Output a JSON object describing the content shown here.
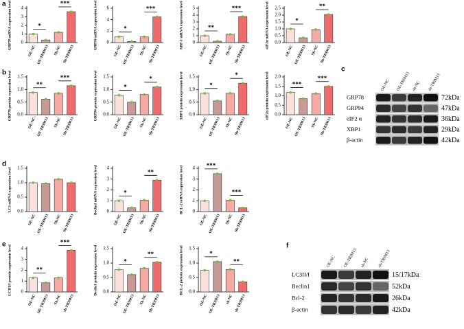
{
  "chart_data": [
    {
      "type": "bar",
      "panel": "a",
      "ylabel": "GRP78 mRNA expression level",
      "categories": [
        "OE-NC",
        "OE-TRIM13",
        "Sh-NC",
        "Sh-TRIM13"
      ],
      "values": [
        1.0,
        0.3,
        1.2,
        3.6
      ],
      "colors": [
        "#fbe0dc",
        "#c89a96",
        "#f5aaa4",
        "#ee6b6b"
      ],
      "ylim": [
        0,
        4
      ],
      "yticks": [
        0,
        1,
        2,
        3,
        4
      ],
      "annotations": [
        {
          "text": "*"
        },
        {
          "text": "***"
        }
      ]
    },
    {
      "type": "bar",
      "ylabel": "GRP94 mRNA expression level",
      "categories": [
        "OE-NC",
        "OE-TRIM13",
        "Sh-NC",
        "Sh-TRIM13"
      ],
      "values": [
        1.0,
        0.2,
        1.0,
        4.5
      ],
      "colors": [
        "#fbe0dc",
        "#c89a96",
        "#f5aaa4",
        "#ee6b6b"
      ],
      "ylim": [
        0,
        6
      ],
      "yticks": [
        0,
        2,
        4,
        6
      ],
      "annotations": [
        {
          "text": "*"
        },
        {
          "text": "***"
        }
      ]
    },
    {
      "type": "bar",
      "ylabel": "XBP-1 mRNA expression level",
      "categories": [
        "OE-NC",
        "OE-TRIM13",
        "Sh-NC",
        "Sh-TRIM13"
      ],
      "values": [
        1.0,
        0.2,
        1.2,
        3.8
      ],
      "colors": [
        "#fbe0dc",
        "#c89a96",
        "#f5aaa4",
        "#ee6b6b"
      ],
      "ylim": [
        0,
        5
      ],
      "yticks": [
        0,
        1,
        2,
        3,
        4,
        5
      ],
      "annotations": [
        {
          "text": "**"
        },
        {
          "text": "***"
        }
      ]
    },
    {
      "type": "bar",
      "ylabel": "eIF2α mRNA expression level",
      "categories": [
        "OE-NC",
        "OE-TRIM13",
        "Sh-NC",
        "Sh-TRIM13"
      ],
      "values": [
        1.0,
        0.35,
        0.95,
        2.05
      ],
      "colors": [
        "#fbe0dc",
        "#c89a96",
        "#f5aaa4",
        "#ee6b6b"
      ],
      "ylim": [
        0,
        2.5
      ],
      "yticks": [
        {
          "value": 0,
          "label": "0.0"
        },
        0.5,
        {
          "value": 1,
          "label": "1.0"
        },
        1.5,
        {
          "value": 2,
          "label": "2.0"
        },
        2.5
      ],
      "annotations": [
        {
          "text": "*"
        },
        {
          "text": "**"
        }
      ]
    },
    {
      "type": "bar",
      "panel": "b",
      "ylabel": "GRP78 protein expression level",
      "categories": [
        "OE-NC",
        "OE-TRIM13",
        "Sh-NC",
        "Sh-TRIM13"
      ],
      "values": [
        0.88,
        0.62,
        0.85,
        1.15
      ],
      "colors": [
        "#fbe0dc",
        "#c89a96",
        "#f5aaa4",
        "#ee6b6b"
      ],
      "ylim": [
        0,
        1.5
      ],
      "yticks": [
        {
          "value": 0,
          "label": "0.0"
        },
        0.5,
        {
          "value": 1,
          "label": "1.0"
        },
        1.5
      ],
      "annotations": [
        {
          "text": "**"
        },
        {
          "text": "***"
        }
      ]
    },
    {
      "type": "bar",
      "ylabel": "GRP94 protein expression level",
      "categories": [
        "OE-NC",
        "OE-TRIM13",
        "Sh-NC",
        "Sh-TRIM13"
      ],
      "values": [
        0.78,
        0.5,
        0.8,
        1.1
      ],
      "colors": [
        "#fbe0dc",
        "#c89a96",
        "#f5aaa4",
        "#ee6b6b"
      ],
      "ylim": [
        0,
        1.5
      ],
      "yticks": [
        {
          "value": 0,
          "label": "0.0"
        },
        0.5,
        {
          "value": 1,
          "label": "1.0"
        },
        1.5
      ],
      "annotations": [
        {
          "text": "*"
        },
        {
          "text": "*"
        }
      ]
    },
    {
      "type": "bar",
      "ylabel": "XBP1 protein expression level",
      "categories": [
        "OE-NC",
        "OE-TRIM13",
        "Sh-NC",
        "Sh-TRIM13"
      ],
      "values": [
        0.85,
        0.55,
        0.85,
        1.25
      ],
      "colors": [
        "#fbe0dc",
        "#c89a96",
        "#f5aaa4",
        "#ee6b6b"
      ],
      "ylim": [
        0,
        1.5
      ],
      "yticks": [
        {
          "value": 0,
          "label": "0.0"
        },
        0.5,
        {
          "value": 1,
          "label": "1.0"
        },
        1.5
      ],
      "annotations": [
        {
          "text": "*"
        },
        {
          "text": "*"
        }
      ]
    },
    {
      "type": "bar",
      "ylabel": "eIF2α protein expression level",
      "categories": [
        "OE-NC",
        "OE-TRIM13",
        "Sh-NC",
        "Sh-TRIM13"
      ],
      "values": [
        1.18,
        0.85,
        1.12,
        1.5
      ],
      "colors": [
        "#fbe0dc",
        "#c89a96",
        "#f5aaa4",
        "#ee6b6b"
      ],
      "ylim": [
        0,
        2
      ],
      "yticks": [
        {
          "value": 0,
          "label": "0.0"
        },
        0.5,
        {
          "value": 1,
          "label": "1.0"
        },
        1.5,
        {
          "value": 2,
          "label": "2.0"
        }
      ],
      "annotations": [
        {
          "text": "***"
        },
        {
          "text": "***"
        }
      ]
    },
    {
      "type": "bar",
      "panel": "d",
      "ylabel": "LC3 mRNA expression level",
      "categories": [
        "OE-NC",
        "OE-TRIM13",
        "Sh-NC",
        "Sh-TRIM13"
      ],
      "values": [
        1.0,
        0.97,
        1.12,
        1.0
      ],
      "colors": [
        "#fbe0dc",
        "#c89a96",
        "#f5aaa4",
        "#ee6b6b"
      ],
      "ylim": [
        0,
        1.5
      ],
      "yticks": [
        {
          "value": 0,
          "label": "0.0"
        },
        0.5,
        {
          "value": 1,
          "label": "1.0"
        },
        1.5
      ],
      "annotations": []
    },
    {
      "type": "bar",
      "ylabel": "Beclin1 mRNA expression level",
      "categories": [
        "OE-NC",
        "OE-TRIM13",
        "Sh-NC",
        "Sh-TRIM13"
      ],
      "values": [
        1.0,
        0.35,
        1.05,
        2.9
      ],
      "colors": [
        "#fbe0dc",
        "#c89a96",
        "#f5aaa4",
        "#ee6b6b"
      ],
      "ylim": [
        0,
        4
      ],
      "yticks": [
        0,
        1,
        2,
        3,
        4
      ],
      "annotations": [
        {
          "text": "*"
        },
        {
          "text": "**"
        }
      ]
    },
    {
      "type": "bar",
      "ylabel": "BCL-2 mRNA expression level",
      "categories": [
        "OE-NC",
        "OE-TRIM13",
        "Sh-NC",
        "Sh-TRIM13"
      ],
      "values": [
        1.0,
        3.5,
        1.05,
        0.35
      ],
      "colors": [
        "#fbe0dc",
        "#c89a96",
        "#f5aaa4",
        "#ee6b6b"
      ],
      "ylim": [
        0,
        4
      ],
      "yticks": [
        0,
        1,
        2,
        3,
        4
      ],
      "annotations": [
        {
          "text": "***"
        },
        {
          "text": "***"
        }
      ]
    },
    {
      "type": "bar",
      "panel": "e",
      "ylabel": "LC3II/I protein expression level",
      "categories": [
        "OE-NC",
        "OE-TRIM13",
        "Sh-NC",
        "sh-TRIM13"
      ],
      "values": [
        1.3,
        0.85,
        1.3,
        3.85
      ],
      "colors": [
        "#fbe0dc",
        "#c89a96",
        "#f5aaa4",
        "#ee6b6b"
      ],
      "ylim": [
        0,
        4
      ],
      "yticks": [
        0,
        1,
        2,
        3,
        4
      ],
      "annotations": [
        {
          "text": "**"
        },
        {
          "text": "***"
        }
      ]
    },
    {
      "type": "bar",
      "ylabel": "Beclin1 protein expression level",
      "categories": [
        "OE-NC",
        "OE-TRIM13",
        "Sh-NC",
        "Sh-TRIM13"
      ],
      "values": [
        0.77,
        0.6,
        0.82,
        1.03
      ],
      "colors": [
        "#fbe0dc",
        "#c89a96",
        "#f5aaa4",
        "#ee6b6b"
      ],
      "ylim": [
        0,
        1.5
      ],
      "yticks": [
        {
          "value": 0,
          "label": "0.0"
        },
        0.5,
        {
          "value": 1,
          "label": "1.0"
        },
        1.5
      ],
      "annotations": [
        {
          "text": "*"
        },
        {
          "text": "**"
        }
      ]
    },
    {
      "type": "bar",
      "ylabel": "BCL-2 protein expression level",
      "categories": [
        "OE-NC",
        "OE-TRIM13",
        "sh-NC",
        "sh-TRIM13"
      ],
      "values": [
        0.75,
        1.05,
        0.78,
        0.35
      ],
      "colors": [
        "#fbe0dc",
        "#c89a96",
        "#f5aaa4",
        "#ee6b6b"
      ],
      "ylim": [
        0,
        1.5
      ],
      "yticks": [
        {
          "value": 0,
          "label": "0.0"
        },
        0.5,
        {
          "value": 1,
          "label": "1.0"
        },
        1.5
      ],
      "annotations": [
        {
          "text": "*"
        },
        {
          "text": "**"
        }
      ]
    }
  ],
  "blots": [
    {
      "panel": "c",
      "lanes": [
        "OE-NC",
        "OE-TRIM13",
        "sh-NC",
        "sh-TRIM13"
      ],
      "rows": [
        {
          "name": "GRP78",
          "kda": "72kDa"
        },
        {
          "name": "GRP94",
          "kda": "47kDa"
        },
        {
          "name": "eIF2 α",
          "kda": "36kDa"
        },
        {
          "name": "XBP1",
          "kda": "29kDa"
        },
        {
          "name": "β-actin",
          "kda": "42kDa"
        }
      ]
    },
    {
      "panel": "f",
      "lanes": [
        "OE-NC",
        "OE-TRIM13",
        "sh-NC",
        "sh-TRIM13"
      ],
      "rows": [
        {
          "name": "LC3II/I",
          "kda": "15/17kDa"
        },
        {
          "name": "Beclin1",
          "kda": "52kDa"
        },
        {
          "name": "Bcl-2",
          "kda": "26kDa"
        },
        {
          "name": "β-actin",
          "kda": "42kDa"
        }
      ]
    }
  ]
}
